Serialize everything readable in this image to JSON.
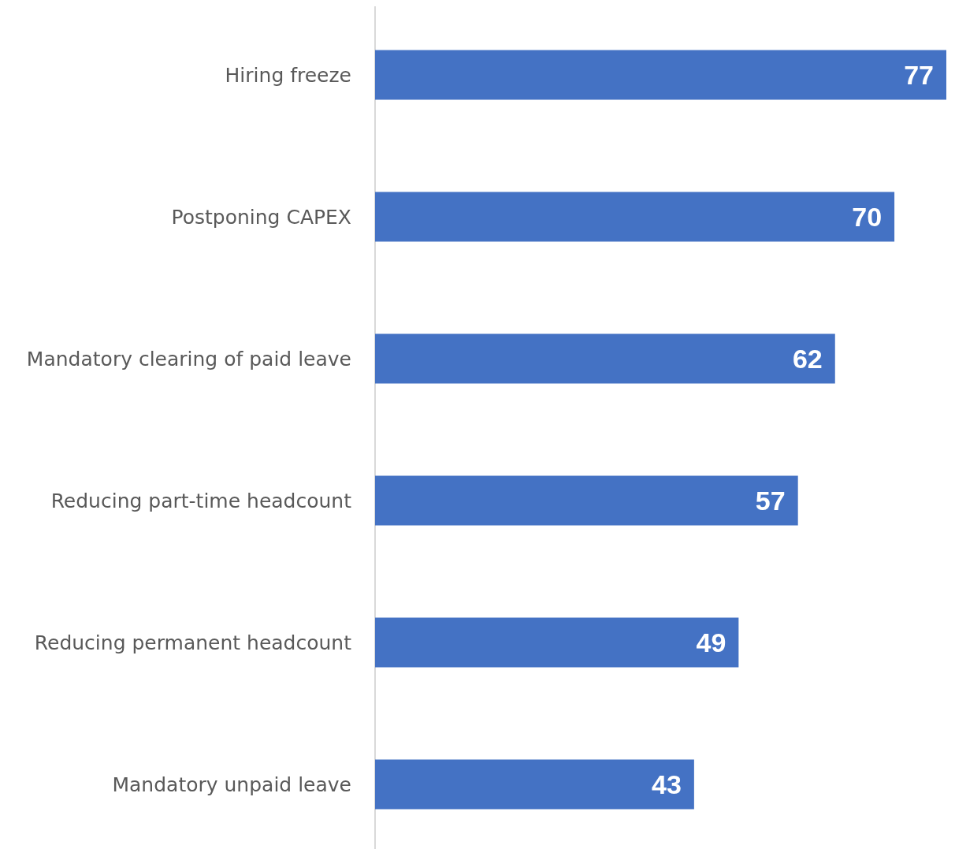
{
  "chart_data": {
    "type": "bar",
    "orientation": "horizontal",
    "categories": [
      "Hiring freeze",
      "Postponing CAPEX",
      "Mandatory clearing of paid leave",
      "Reducing part-time headcount",
      "Reducing permanent headcount",
      "Mandatory unpaid leave"
    ],
    "values": [
      77,
      70,
      62,
      57,
      49,
      43
    ],
    "color": "#4472c4",
    "data_labels": true
  }
}
